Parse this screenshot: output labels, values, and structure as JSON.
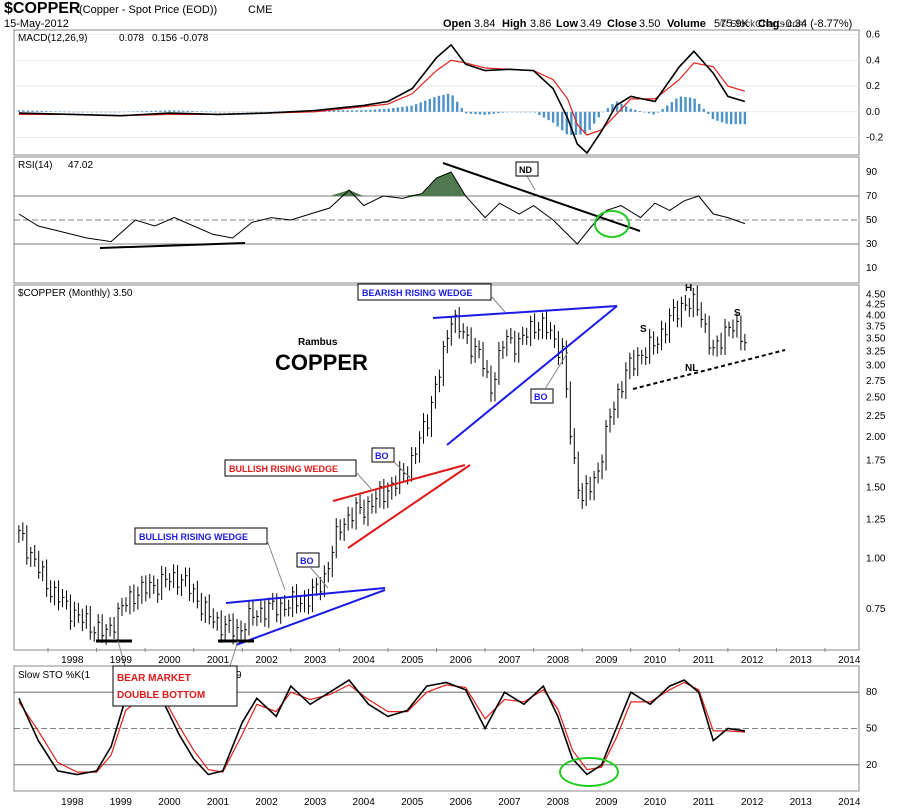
{
  "header": {
    "symbol": "$COPPER",
    "description": "(Copper - Spot Price (EOD))",
    "exchange": "CME",
    "date": "15-May-2012",
    "open_label": "Open",
    "open": "3.84",
    "high_label": "High",
    "high": "3.86",
    "low_label": "Low",
    "low": "3.49",
    "close_label": "Close",
    "close": "3.50",
    "volume_label": "Volume",
    "volume": "575.9K",
    "chg_label": "Chg",
    "chg": "-0.34 (-8.77%)",
    "copyright": "© StockCharts.com"
  },
  "colors": {
    "price_bars": "#000000",
    "macd_line": "#000000",
    "signal_line": "#e0201a",
    "histogram": "#4d93c9",
    "rsi_fill": "#4f7a4f",
    "wedge_blue": "#1a1ae6",
    "wedge_red": "#e01818",
    "circle_green": "#22cc22",
    "sto_k": "#000000",
    "sto_d": "#e0201a"
  },
  "chart_data": [
    {
      "type": "line",
      "panel": "macd",
      "label": "MACD(12,26,9)",
      "label_values": [
        "0.078",
        "0.156",
        "-0.078"
      ],
      "y_ticks": [
        "0.6",
        "0.4",
        "0.2",
        "0.0",
        "-0.2"
      ],
      "ylim": [
        -0.32,
        0.62
      ],
      "x": [
        1997.4,
        1998.5,
        1999.5,
        2000.5,
        2001.5,
        2002.5,
        2003.5,
        2004.0,
        2004.5,
        2005.0,
        2005.5,
        2006.0,
        2006.3,
        2006.6,
        2007.0,
        2007.5,
        2008.0,
        2008.4,
        2008.7,
        2008.9,
        2009.1,
        2009.4,
        2009.7,
        2010.0,
        2010.5,
        2011.0,
        2011.3,
        2011.7,
        2012.0,
        2012.35
      ],
      "series": [
        {
          "name": "MACD(12,26,9)",
          "values": [
            -0.01,
            -0.02,
            -0.03,
            -0.01,
            -0.02,
            -0.01,
            0.01,
            0.03,
            0.05,
            0.08,
            0.18,
            0.42,
            0.52,
            0.37,
            0.32,
            0.33,
            0.32,
            0.18,
            -0.05,
            -0.25,
            -0.32,
            -0.15,
            0.05,
            0.12,
            0.08,
            0.35,
            0.47,
            0.3,
            0.12,
            0.08
          ]
        },
        {
          "name": "",
          "values": [
            -0.02,
            -0.02,
            -0.03,
            -0.02,
            -0.02,
            -0.01,
            0.0,
            0.02,
            0.04,
            0.06,
            0.14,
            0.32,
            0.4,
            0.38,
            0.34,
            0.33,
            0.32,
            0.25,
            0.1,
            -0.1,
            -0.18,
            -0.14,
            -0.02,
            0.1,
            0.1,
            0.25,
            0.38,
            0.35,
            0.2,
            0.16
          ]
        }
      ]
    },
    {
      "type": "line",
      "panel": "rsi",
      "label": "RSI(14)",
      "label_value": "47.02",
      "y_ticks": [
        "90",
        "70",
        "50",
        "30",
        "10"
      ],
      "ylim": [
        0,
        100
      ],
      "x": [
        1997.4,
        1997.8,
        1998.3,
        1998.8,
        1999.3,
        1999.8,
        2000.2,
        2000.6,
        2001.0,
        2001.4,
        2001.8,
        2002.2,
        2002.6,
        2003.0,
        2003.4,
        2003.8,
        2004.2,
        2004.5,
        2004.9,
        2005.3,
        2005.7,
        2006.0,
        2006.3,
        2006.6,
        2007.0,
        2007.3,
        2007.7,
        2008.0,
        2008.4,
        2008.7,
        2008.9,
        2009.2,
        2009.5,
        2009.8,
        2010.2,
        2010.5,
        2010.8,
        2011.1,
        2011.4,
        2011.7,
        2012.0,
        2012.35
      ],
      "values": [
        55,
        45,
        40,
        35,
        32,
        50,
        45,
        52,
        45,
        38,
        35,
        48,
        52,
        50,
        55,
        60,
        75,
        62,
        70,
        68,
        72,
        85,
        90,
        70,
        52,
        64,
        55,
        62,
        50,
        38,
        30,
        45,
        58,
        62,
        52,
        64,
        58,
        66,
        70,
        55,
        52,
        47
      ]
    },
    {
      "type": "bar",
      "panel": "price",
      "label": "$COPPER (Monthly) 3.50",
      "y_ticks": [
        "4.50",
        "4.25",
        "4.00",
        "3.75",
        "3.50",
        "3.25",
        "3.00",
        "2.75",
        "2.50",
        "2.25",
        "2.00",
        "1.75",
        "1.50",
        "1.25",
        "1.00",
        "0.75"
      ],
      "x_ticks": [
        "1998",
        "1999",
        "2000",
        "2001",
        "2002",
        "2003",
        "2004",
        "2005",
        "2006",
        "2007",
        "2008",
        "2009",
        "2010",
        "2011",
        "2012",
        "2013",
        "2014"
      ],
      "scale": "log",
      "ylim": [
        0.6,
        4.7
      ],
      "x": [
        1997.4,
        1997.7,
        1998.0,
        1998.3,
        1998.6,
        1998.9,
        1999.2,
        1999.5,
        1999.8,
        2000.1,
        2000.4,
        2000.7,
        2001.0,
        2001.3,
        2001.6,
        2001.9,
        2002.2,
        2002.5,
        2002.8,
        2003.1,
        2003.4,
        2003.7,
        2004.0,
        2004.3,
        2004.6,
        2004.9,
        2005.2,
        2005.5,
        2005.8,
        2006.1,
        2006.3,
        2006.6,
        2006.9,
        2007.1,
        2007.4,
        2007.7,
        2008.0,
        2008.3,
        2008.6,
        2008.8,
        2009.0,
        2009.3,
        2009.6,
        2009.9,
        2010.2,
        2010.5,
        2010.8,
        2011.1,
        2011.4,
        2011.7,
        2012.0,
        2012.35
      ],
      "values": [
        1.15,
        1.0,
        0.85,
        0.78,
        0.72,
        0.68,
        0.65,
        0.75,
        0.82,
        0.85,
        0.88,
        0.9,
        0.82,
        0.72,
        0.68,
        0.66,
        0.72,
        0.75,
        0.76,
        0.78,
        0.8,
        0.9,
        1.2,
        1.3,
        1.35,
        1.45,
        1.55,
        1.75,
        2.2,
        3.0,
        4.0,
        3.5,
        3.2,
        2.6,
        3.5,
        3.4,
        3.8,
        3.7,
        3.2,
        1.8,
        1.4,
        1.6,
        2.3,
        2.9,
        3.2,
        3.4,
        3.9,
        4.3,
        4.2,
        3.2,
        3.8,
        3.5
      ],
      "annotations": [
        "Rambus",
        "COPPER",
        "BULLISH RISING WEDGE",
        "BULLISH RISING WEDGE",
        "BEARISH RISING WEDGE",
        "BO",
        "BO",
        "BO",
        "H",
        "S",
        "S",
        "NL",
        "BEAR MARKET",
        "DOUBLE BOTTOM"
      ]
    },
    {
      "type": "line",
      "panel": "sto",
      "label": "Slow STO %K(1",
      "label_suffix": "9",
      "y_ticks": [
        "80",
        "50",
        "20"
      ],
      "ylim": [
        0,
        100
      ],
      "x": [
        1997.4,
        1997.8,
        1998.2,
        1998.6,
        1999.0,
        1999.3,
        1999.6,
        2000.0,
        2000.4,
        2000.7,
        2001.0,
        2001.3,
        2001.6,
        2002.0,
        2002.3,
        2002.7,
        2003.0,
        2003.4,
        2003.8,
        2004.2,
        2004.6,
        2005.0,
        2005.4,
        2005.8,
        2006.2,
        2006.6,
        2007.0,
        2007.4,
        2007.8,
        2008.2,
        2008.5,
        2008.8,
        2009.1,
        2009.4,
        2009.7,
        2010.0,
        2010.4,
        2010.8,
        2011.1,
        2011.4,
        2011.7,
        2012.0,
        2012.35
      ],
      "series": [
        {
          "name": "%K",
          "values": [
            75,
            40,
            15,
            12,
            15,
            35,
            75,
            80,
            70,
            45,
            25,
            12,
            15,
            55,
            75,
            60,
            85,
            70,
            80,
            90,
            70,
            60,
            65,
            85,
            88,
            82,
            50,
            80,
            70,
            85,
            60,
            25,
            12,
            20,
            50,
            80,
            70,
            85,
            90,
            80,
            40,
            50,
            48
          ]
        },
        {
          "name": "",
          "values": [
            72,
            48,
            22,
            14,
            14,
            28,
            65,
            78,
            74,
            52,
            32,
            16,
            14,
            45,
            70,
            64,
            80,
            74,
            78,
            86,
            74,
            64,
            64,
            80,
            86,
            84,
            58,
            74,
            72,
            82,
            66,
            32,
            16,
            18,
            42,
            72,
            72,
            82,
            88,
            82,
            48,
            48,
            47
          ]
        }
      ]
    }
  ]
}
